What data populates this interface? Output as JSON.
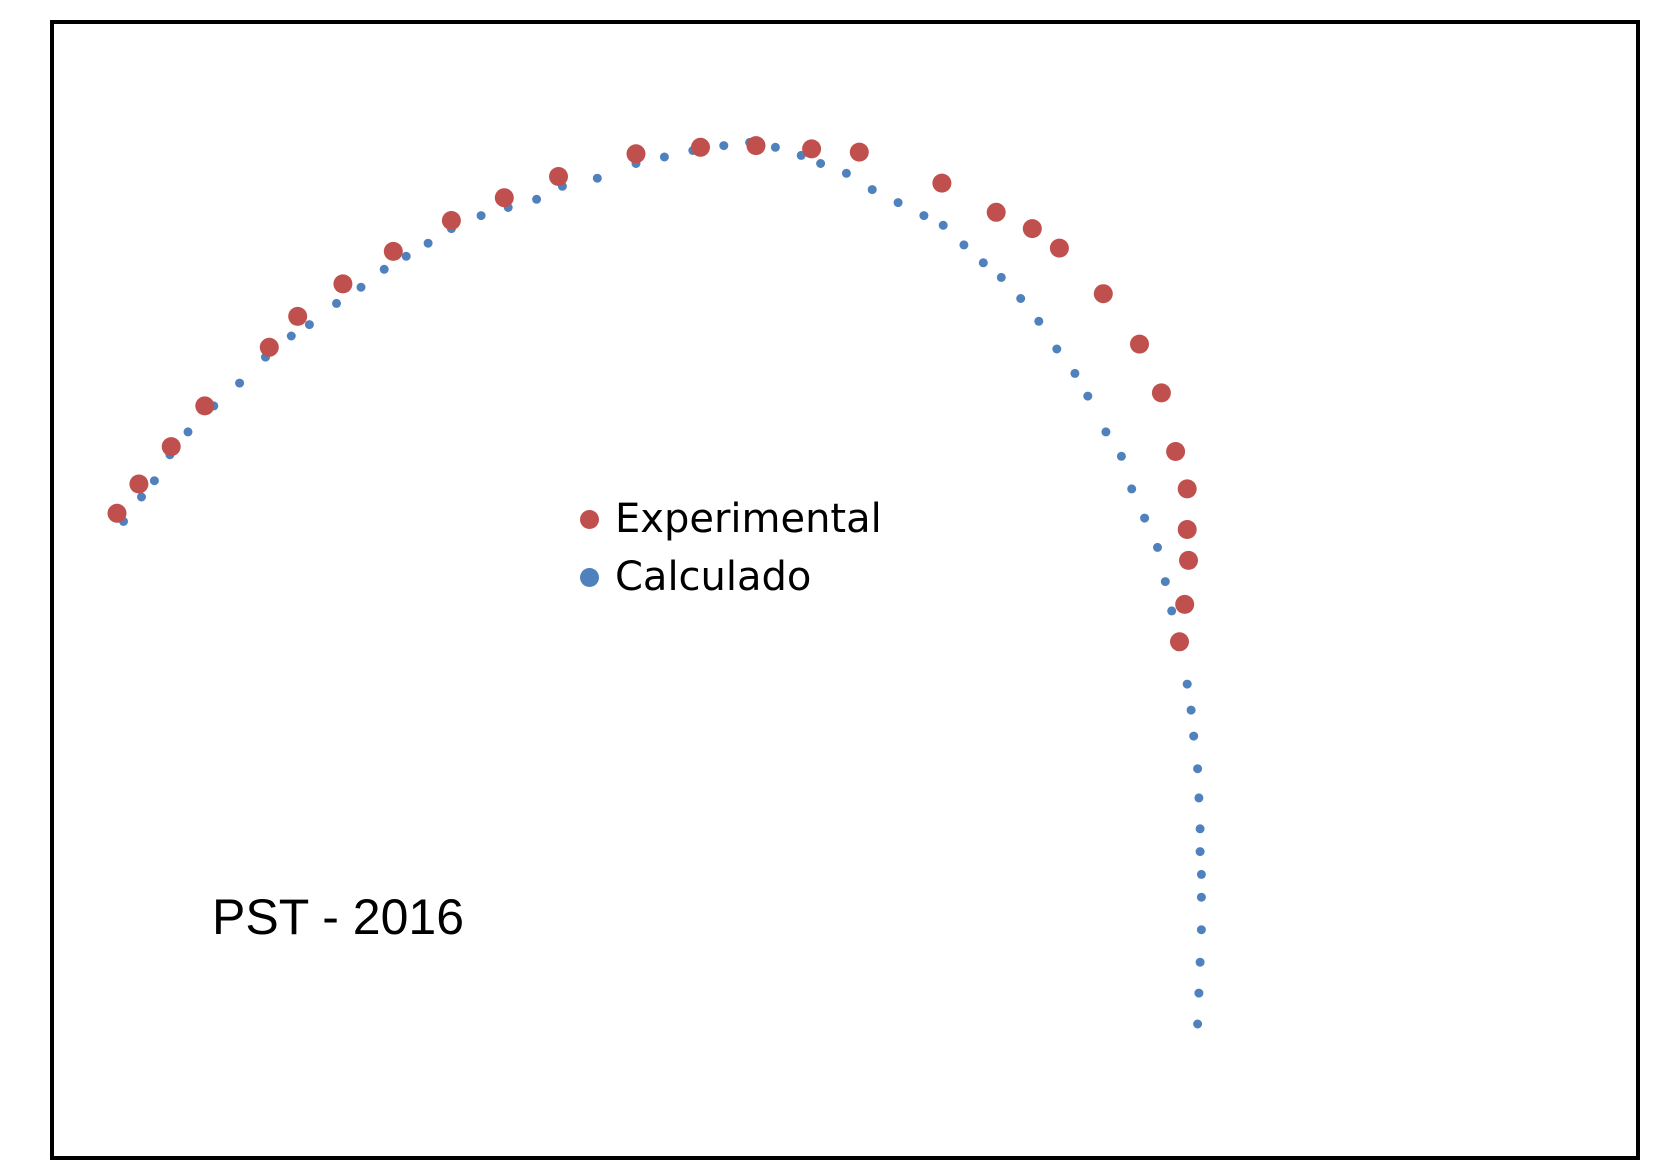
{
  "chart_data": {
    "type": "scatter",
    "title": "",
    "xlabel": "",
    "ylabel": "",
    "grid": false,
    "axes_visible": false,
    "xlim": [
      0,
      1000
    ],
    "ylim": [
      0,
      600
    ],
    "legend_position": "center",
    "annotation": "PST - 2016",
    "series": [
      {
        "name": "Experimental",
        "color": "#c0504d",
        "marker_size": "large",
        "points": [
          [
            0,
            365
          ],
          [
            17,
            383
          ],
          [
            42,
            406
          ],
          [
            68,
            431
          ],
          [
            118,
            467
          ],
          [
            140,
            486
          ],
          [
            175,
            506
          ],
          [
            214,
            526
          ],
          [
            259,
            545
          ],
          [
            300,
            559
          ],
          [
            342,
            572
          ],
          [
            402,
            586
          ],
          [
            452,
            590
          ],
          [
            495,
            591
          ],
          [
            538,
            589
          ],
          [
            575,
            587
          ],
          [
            639,
            568
          ],
          [
            681,
            550
          ],
          [
            709,
            540
          ],
          [
            730,
            528
          ],
          [
            764,
            500
          ],
          [
            792,
            469
          ],
          [
            809,
            439
          ],
          [
            820,
            403
          ],
          [
            829,
            380
          ],
          [
            829,
            355
          ],
          [
            830,
            336
          ],
          [
            827,
            309
          ],
          [
            823,
            286
          ]
        ]
      },
      {
        "name": "Calculado",
        "color": "#4f81bd",
        "marker_size": "small",
        "points": [
          [
            5,
            360
          ],
          [
            19,
            375
          ],
          [
            29,
            385
          ],
          [
            41,
            401
          ],
          [
            55,
            415
          ],
          [
            75,
            431
          ],
          [
            95,
            445
          ],
          [
            115,
            461
          ],
          [
            135,
            474
          ],
          [
            149,
            481
          ],
          [
            170,
            494
          ],
          [
            189,
            504
          ],
          [
            207,
            515
          ],
          [
            224,
            523
          ],
          [
            241,
            531
          ],
          [
            259,
            540
          ],
          [
            282,
            548
          ],
          [
            303,
            553
          ],
          [
            325,
            558
          ],
          [
            345,
            566
          ],
          [
            372,
            571
          ],
          [
            402,
            580
          ],
          [
            424,
            584
          ],
          [
            446,
            588
          ],
          [
            470,
            591
          ],
          [
            490,
            593
          ],
          [
            510,
            590
          ],
          [
            530,
            585
          ],
          [
            545,
            580
          ],
          [
            565,
            574
          ],
          [
            585,
            564
          ],
          [
            605,
            556
          ],
          [
            625,
            548
          ],
          [
            640,
            542
          ],
          [
            656,
            530
          ],
          [
            671,
            519
          ],
          [
            685,
            510
          ],
          [
            700,
            497
          ],
          [
            714,
            483
          ],
          [
            728,
            466
          ],
          [
            742,
            451
          ],
          [
            752,
            437
          ],
          [
            766,
            415
          ],
          [
            778,
            400
          ],
          [
            786,
            380
          ],
          [
            796,
            362
          ],
          [
            806,
            344
          ],
          [
            812,
            323
          ],
          [
            817,
            305
          ],
          [
            822,
            283
          ],
          [
            829,
            260
          ],
          [
            832,
            244
          ],
          [
            834,
            228
          ],
          [
            837,
            208
          ],
          [
            838,
            190
          ],
          [
            839,
            171
          ],
          [
            839,
            157
          ],
          [
            840,
            143
          ],
          [
            840,
            129
          ],
          [
            840,
            109
          ],
          [
            839,
            89
          ],
          [
            838,
            70
          ],
          [
            837,
            51
          ]
        ]
      }
    ]
  }
}
